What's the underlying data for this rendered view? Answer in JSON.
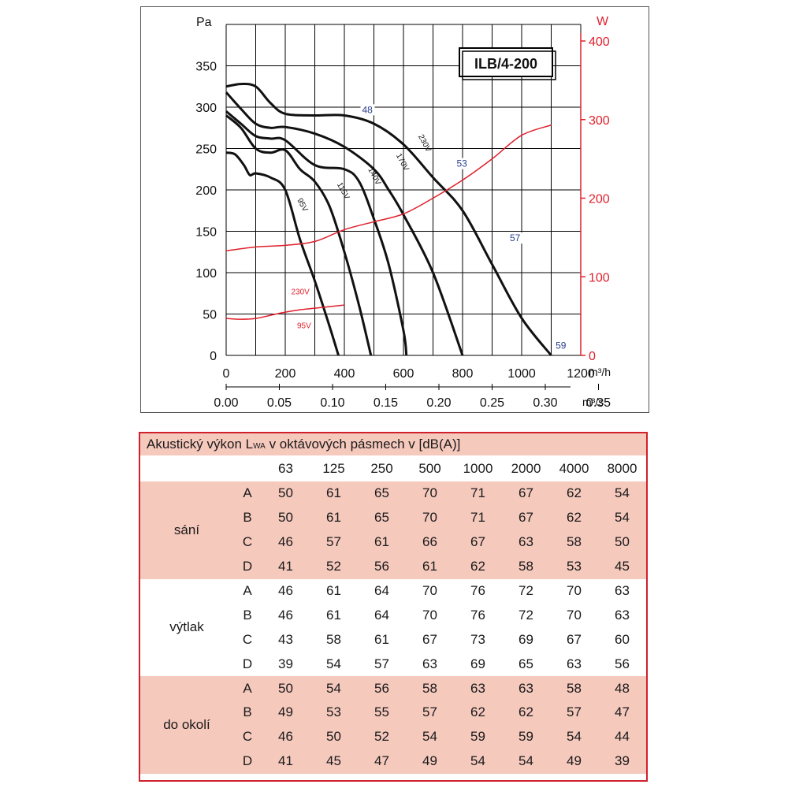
{
  "chart_data": {
    "type": "line",
    "title": "ILB/4-200",
    "y_axis": {
      "label": "Pa",
      "range": [
        0,
        350
      ],
      "ticks": [
        0,
        50,
        100,
        150,
        200,
        250,
        300,
        350
      ]
    },
    "x_axis": {
      "label": "m³/h",
      "range": [
        0,
        1200
      ],
      "ticks": [
        0,
        200,
        400,
        600,
        800,
        1000,
        1200
      ]
    },
    "x2_axis": {
      "label": "m³/s",
      "ticks": [
        "0.00",
        "0.05",
        "0.10",
        "0.15",
        "0.20",
        "0.25",
        "0.30",
        "0.35"
      ]
    },
    "y2_axis": {
      "label": "W",
      "range": [
        0,
        400
      ],
      "ticks": [
        0,
        100,
        200,
        300,
        400
      ],
      "color": "#e0202c"
    },
    "grid": true,
    "series": [
      {
        "name": "230V",
        "label_at": [
          650,
          265
        ],
        "color": "#111111",
        "x": [
          0,
          50,
          100,
          150,
          200,
          300,
          400,
          500,
          600,
          700,
          800,
          900,
          1000,
          1100
        ],
        "y": [
          325,
          328,
          325,
          305,
          292,
          290,
          290,
          280,
          255,
          215,
          175,
          110,
          45,
          0
        ]
      },
      {
        "name": "170V",
        "label_at": [
          575,
          242
        ],
        "color": "#111111",
        "x": [
          0,
          50,
          100,
          150,
          200,
          300,
          400,
          500,
          550,
          600,
          700,
          800
        ],
        "y": [
          318,
          298,
          280,
          275,
          276,
          268,
          252,
          225,
          200,
          170,
          100,
          0
        ]
      },
      {
        "name": "140V",
        "label_at": [
          480,
          225
        ],
        "color": "#111111",
        "x": [
          0,
          50,
          100,
          150,
          200,
          300,
          400,
          450,
          500,
          550,
          600,
          610
        ],
        "y": [
          295,
          280,
          265,
          262,
          260,
          230,
          225,
          210,
          165,
          110,
          30,
          0
        ]
      },
      {
        "name": "115V",
        "label_at": [
          375,
          207
        ],
        "color": "#111111",
        "x": [
          0,
          50,
          100,
          150,
          200,
          250,
          300,
          350,
          400,
          450,
          490
        ],
        "y": [
          290,
          275,
          250,
          245,
          248,
          225,
          210,
          180,
          125,
          60,
          0
        ]
      },
      {
        "name": "95V",
        "label_at": [
          240,
          188
        ],
        "color": "#111111",
        "x": [
          0,
          30,
          60,
          80,
          100,
          150,
          200,
          250,
          300,
          350,
          380
        ],
        "y": [
          245,
          243,
          230,
          218,
          220,
          215,
          200,
          140,
          90,
          35,
          0
        ]
      }
    ],
    "power_series": [
      {
        "name": "230V",
        "color": "#e0202c",
        "x": [
          0,
          100,
          200,
          300,
          400,
          500,
          600,
          700,
          800,
          900,
          1000,
          1100
        ],
        "y_W": [
          133,
          138,
          140,
          145,
          160,
          170,
          180,
          200,
          223,
          250,
          280,
          293
        ]
      },
      {
        "name": "95V",
        "color": "#e0202c",
        "x": [
          0,
          50,
          100,
          150,
          200,
          250,
          300,
          350,
          400
        ],
        "y_W": [
          47,
          46,
          47,
          51,
          55,
          58,
          60,
          62,
          64
        ]
      }
    ],
    "annotations": [
      {
        "text": "48",
        "at": [
          460,
          293
        ],
        "color": "#2a3f8f"
      },
      {
        "text": "53",
        "at": [
          780,
          228
        ],
        "color": "#2a3f8f"
      },
      {
        "text": "57",
        "at": [
          960,
          138
        ],
        "color": "#2a3f8f"
      },
      {
        "text": "59",
        "at": [
          1115,
          8
        ],
        "color": "#2a3f8f"
      },
      {
        "text": "230V",
        "at": [
          220,
          74
        ],
        "color": "#e0202c"
      },
      {
        "text": "95V",
        "at": [
          240,
          33
        ],
        "color": "#e0202c"
      }
    ]
  },
  "table": {
    "caption_pre": "Akustický výkon L",
    "caption_sub": "WA",
    "caption_post": " v oktávových pásmech v [dB(A)]",
    "bands": [
      "63",
      "125",
      "250",
      "500",
      "1000",
      "2000",
      "4000",
      "8000"
    ],
    "groups": [
      {
        "name": "sání",
        "rows": [
          {
            "id": "A",
            "values": [
              "50",
              "61",
              "65",
              "70",
              "71",
              "67",
              "62",
              "54"
            ]
          },
          {
            "id": "B",
            "values": [
              "50",
              "61",
              "65",
              "70",
              "71",
              "67",
              "62",
              "54"
            ]
          },
          {
            "id": "C",
            "values": [
              "46",
              "57",
              "61",
              "66",
              "67",
              "63",
              "58",
              "50"
            ]
          },
          {
            "id": "D",
            "values": [
              "41",
              "52",
              "56",
              "61",
              "62",
              "58",
              "53",
              "45"
            ]
          }
        ]
      },
      {
        "name": "výtlak",
        "rows": [
          {
            "id": "A",
            "values": [
              "46",
              "61",
              "64",
              "70",
              "76",
              "72",
              "70",
              "63"
            ]
          },
          {
            "id": "B",
            "values": [
              "46",
              "61",
              "64",
              "70",
              "76",
              "72",
              "70",
              "63"
            ]
          },
          {
            "id": "C",
            "values": [
              "43",
              "58",
              "61",
              "67",
              "73",
              "69",
              "67",
              "60"
            ]
          },
          {
            "id": "D",
            "values": [
              "39",
              "54",
              "57",
              "63",
              "69",
              "65",
              "63",
              "56"
            ]
          }
        ]
      },
      {
        "name": "do okolí",
        "rows": [
          {
            "id": "A",
            "values": [
              "50",
              "54",
              "56",
              "58",
              "63",
              "63",
              "58",
              "48"
            ]
          },
          {
            "id": "B",
            "values": [
              "49",
              "53",
              "55",
              "57",
              "62",
              "62",
              "57",
              "47"
            ]
          },
          {
            "id": "C",
            "values": [
              "46",
              "50",
              "52",
              "54",
              "59",
              "59",
              "54",
              "44"
            ]
          },
          {
            "id": "D",
            "values": [
              "41",
              "45",
              "47",
              "49",
              "54",
              "54",
              "49",
              "39"
            ]
          }
        ]
      }
    ]
  }
}
